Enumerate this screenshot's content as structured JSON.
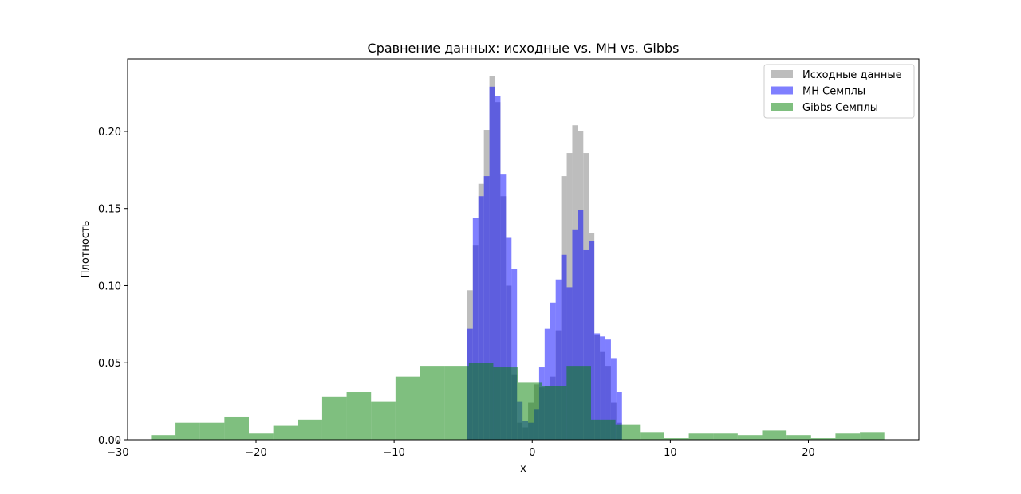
{
  "chart_data": {
    "type": "bar",
    "subtype": "overlaid-histogram",
    "title": "Сравнение данных: исходные vs. MH vs. Gibbs",
    "xlabel": "x",
    "ylabel": "Плотность",
    "xlim": [
      -29.3,
      28.0
    ],
    "ylim": [
      0,
      0.247
    ],
    "x_ticks": [
      -30,
      -20,
      -10,
      0,
      10,
      20
    ],
    "x_tick_labels": [
      "−30",
      "−20",
      "−10",
      "0",
      "10",
      "20"
    ],
    "y_ticks": [
      0.0,
      0.05,
      0.1,
      0.15,
      0.2
    ],
    "y_tick_labels": [
      "0.00",
      "0.05",
      "0.10",
      "0.15",
      "0.20"
    ],
    "grid": false,
    "legend_position": "top-right",
    "series": [
      {
        "name": "Исходные данные",
        "color": "#bdbdbd",
        "opacity": 1,
        "start": -4.7,
        "width": 0.4,
        "values": [
          0.097,
          0.126,
          0.166,
          0.201,
          0.236,
          0.219,
          0.158,
          0.1,
          0.042,
          0.011,
          0.008,
          0.024,
          0.036,
          0.034,
          0.035,
          0.041,
          0.071,
          0.171,
          0.186,
          0.204,
          0.2,
          0.186,
          0.134,
          0.068,
          0.057,
          0.048,
          0.024,
          0.011
        ]
      },
      {
        "name": "MH Семплы",
        "color": "#0000ff",
        "opacity": 0.5,
        "start": -4.7,
        "width": 0.4,
        "values": [
          0.072,
          0.144,
          0.158,
          0.171,
          0.229,
          0.223,
          0.172,
          0.131,
          0.111,
          0.025,
          0.012,
          0.011,
          0.02,
          0.047,
          0.072,
          0.089,
          0.104,
          0.12,
          0.099,
          0.136,
          0.149,
          0.123,
          0.129,
          0.069,
          0.067,
          0.065,
          0.053,
          0.031
        ]
      },
      {
        "name": "Gibbs Семплы",
        "color": "#008000",
        "opacity": 0.5,
        "start": -27.6,
        "width": 1.77,
        "values": [
          0.003,
          0.011,
          0.011,
          0.015,
          0.004,
          0.009,
          0.013,
          0.028,
          0.031,
          0.025,
          0.041,
          0.048,
          0.048,
          0.05,
          0.047,
          0.037,
          0.035,
          0.048,
          0.013,
          0.01,
          0.005,
          0.001,
          0.004,
          0.004,
          0.003,
          0.006,
          0.003,
          0.001,
          0.004,
          0.005
        ]
      }
    ]
  }
}
